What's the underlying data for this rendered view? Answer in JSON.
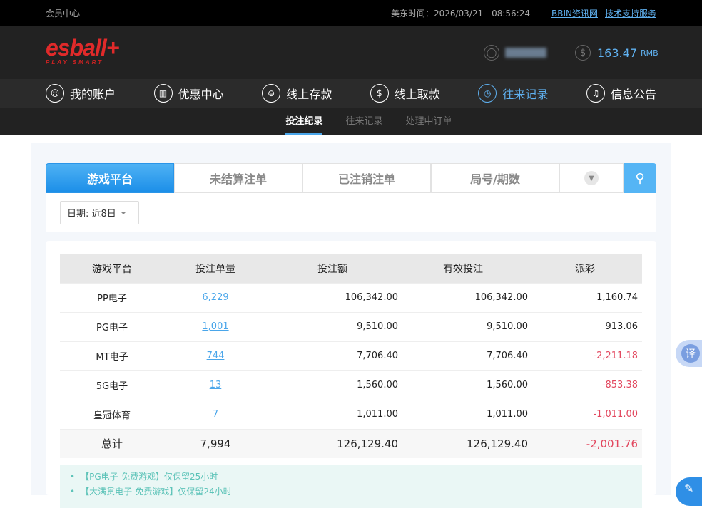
{
  "topbar": {
    "title": "会员中心",
    "time": "美东时间：2026/03/21 - 08:56:24",
    "links": [
      "BBIN资讯网",
      "技术支持服务"
    ]
  },
  "header": {
    "logo": "esball+",
    "logo_tagline": "PLAY SMART",
    "balance": "163.47",
    "currency": "RMB"
  },
  "nav": [
    {
      "label": "我的账户",
      "icon": "user-icon"
    },
    {
      "label": "优惠中心",
      "icon": "gift-icon"
    },
    {
      "label": "线上存款",
      "icon": "deposit-icon"
    },
    {
      "label": "线上取款",
      "icon": "withdraw-icon"
    },
    {
      "label": "往来记录",
      "icon": "record-icon",
      "active": true
    },
    {
      "label": "信息公告",
      "icon": "bell-icon"
    }
  ],
  "subnav": [
    "投注纪录",
    "往来记录",
    "处理中订单"
  ],
  "tabs": [
    "游戏平台",
    "未结算注单",
    "已注销注单",
    "局号/期数"
  ],
  "filter": {
    "date": "日期: 近8日"
  },
  "table": {
    "headers": [
      "游戏平台",
      "投注单量",
      "投注额",
      "有效投注",
      "派彩"
    ],
    "rows": [
      [
        "PP电子",
        "6,229",
        "106,342.00",
        "106,342.00",
        "1,160.74"
      ],
      [
        "PG电子",
        "1,001",
        "9,510.00",
        "9,510.00",
        "913.06"
      ],
      [
        "MT电子",
        "744",
        "7,706.40",
        "7,706.40",
        "-2,211.18"
      ],
      [
        "5G电子",
        "13",
        "1,560.00",
        "1,560.00",
        "-853.38"
      ],
      [
        "皇冠体育",
        "7",
        "1,011.00",
        "1,011.00",
        "-1,011.00"
      ]
    ],
    "total": [
      "总计",
      "7,994",
      "126,129.40",
      "126,129.40",
      "-2,001.76"
    ]
  },
  "notes": [
    "【PG电子-免费游戏】仅保留25小时",
    "【大满贯电子-免费游戏】仅保留24小时"
  ],
  "translate_label": "译",
  "colors": {
    "accent": "#4aa6ea",
    "negative": "#e2475e",
    "brand": "#e02a2a"
  }
}
